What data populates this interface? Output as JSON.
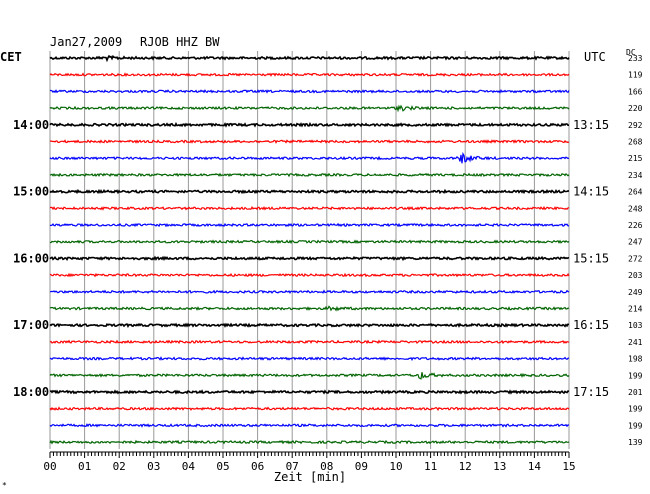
{
  "header": {
    "date": "Jan27,2009",
    "station": "RJOB HHZ BW",
    "left_tz": "CET",
    "right_tz": "UTC",
    "dc_label": "DC"
  },
  "footer": {
    "xlabel": "Zeit [min]",
    "corner_mark": "*"
  },
  "chart_data": {
    "type": "line",
    "title": "Jan27,2009  RJOB HHZ BW",
    "xlabel": "Zeit [min]",
    "xlim": [
      0,
      15
    ],
    "x_ticks": [
      "00",
      "01",
      "02",
      "03",
      "04",
      "05",
      "06",
      "07",
      "08",
      "09",
      "10",
      "11",
      "12",
      "13",
      "14",
      "15"
    ],
    "grid": true,
    "trace_colors": [
      "#000000",
      "#ff0000",
      "#0000ff",
      "#006400"
    ],
    "left_time_labels": [
      {
        "trace": 4,
        "text": "14:00"
      },
      {
        "trace": 8,
        "text": "15:00"
      },
      {
        "trace": 12,
        "text": "16:00"
      },
      {
        "trace": 16,
        "text": "17:00"
      },
      {
        "trace": 20,
        "text": "18:00"
      }
    ],
    "right_time_labels": [
      {
        "trace": 4,
        "text": "13:15"
      },
      {
        "trace": 8,
        "text": "14:15"
      },
      {
        "trace": 12,
        "text": "15:15"
      },
      {
        "trace": 16,
        "text": "16:15"
      },
      {
        "trace": 20,
        "text": "17:15"
      }
    ],
    "dc_offsets": [
      233,
      119,
      166,
      220,
      292,
      268,
      215,
      234,
      264,
      248,
      226,
      247,
      272,
      203,
      249,
      214,
      103,
      241,
      198,
      199,
      201,
      199,
      199,
      139
    ],
    "events": [
      {
        "trace": 0,
        "minute": 1.6,
        "amplitude": 1.6
      },
      {
        "trace": 3,
        "minute": 10.1,
        "amplitude": 2.5
      },
      {
        "trace": 6,
        "minute": 11.9,
        "amplitude": 5.5
      },
      {
        "trace": 15,
        "minute": 8.1,
        "amplitude": 2.0
      },
      {
        "trace": 19,
        "minute": 10.7,
        "amplitude": 3.5
      }
    ]
  }
}
